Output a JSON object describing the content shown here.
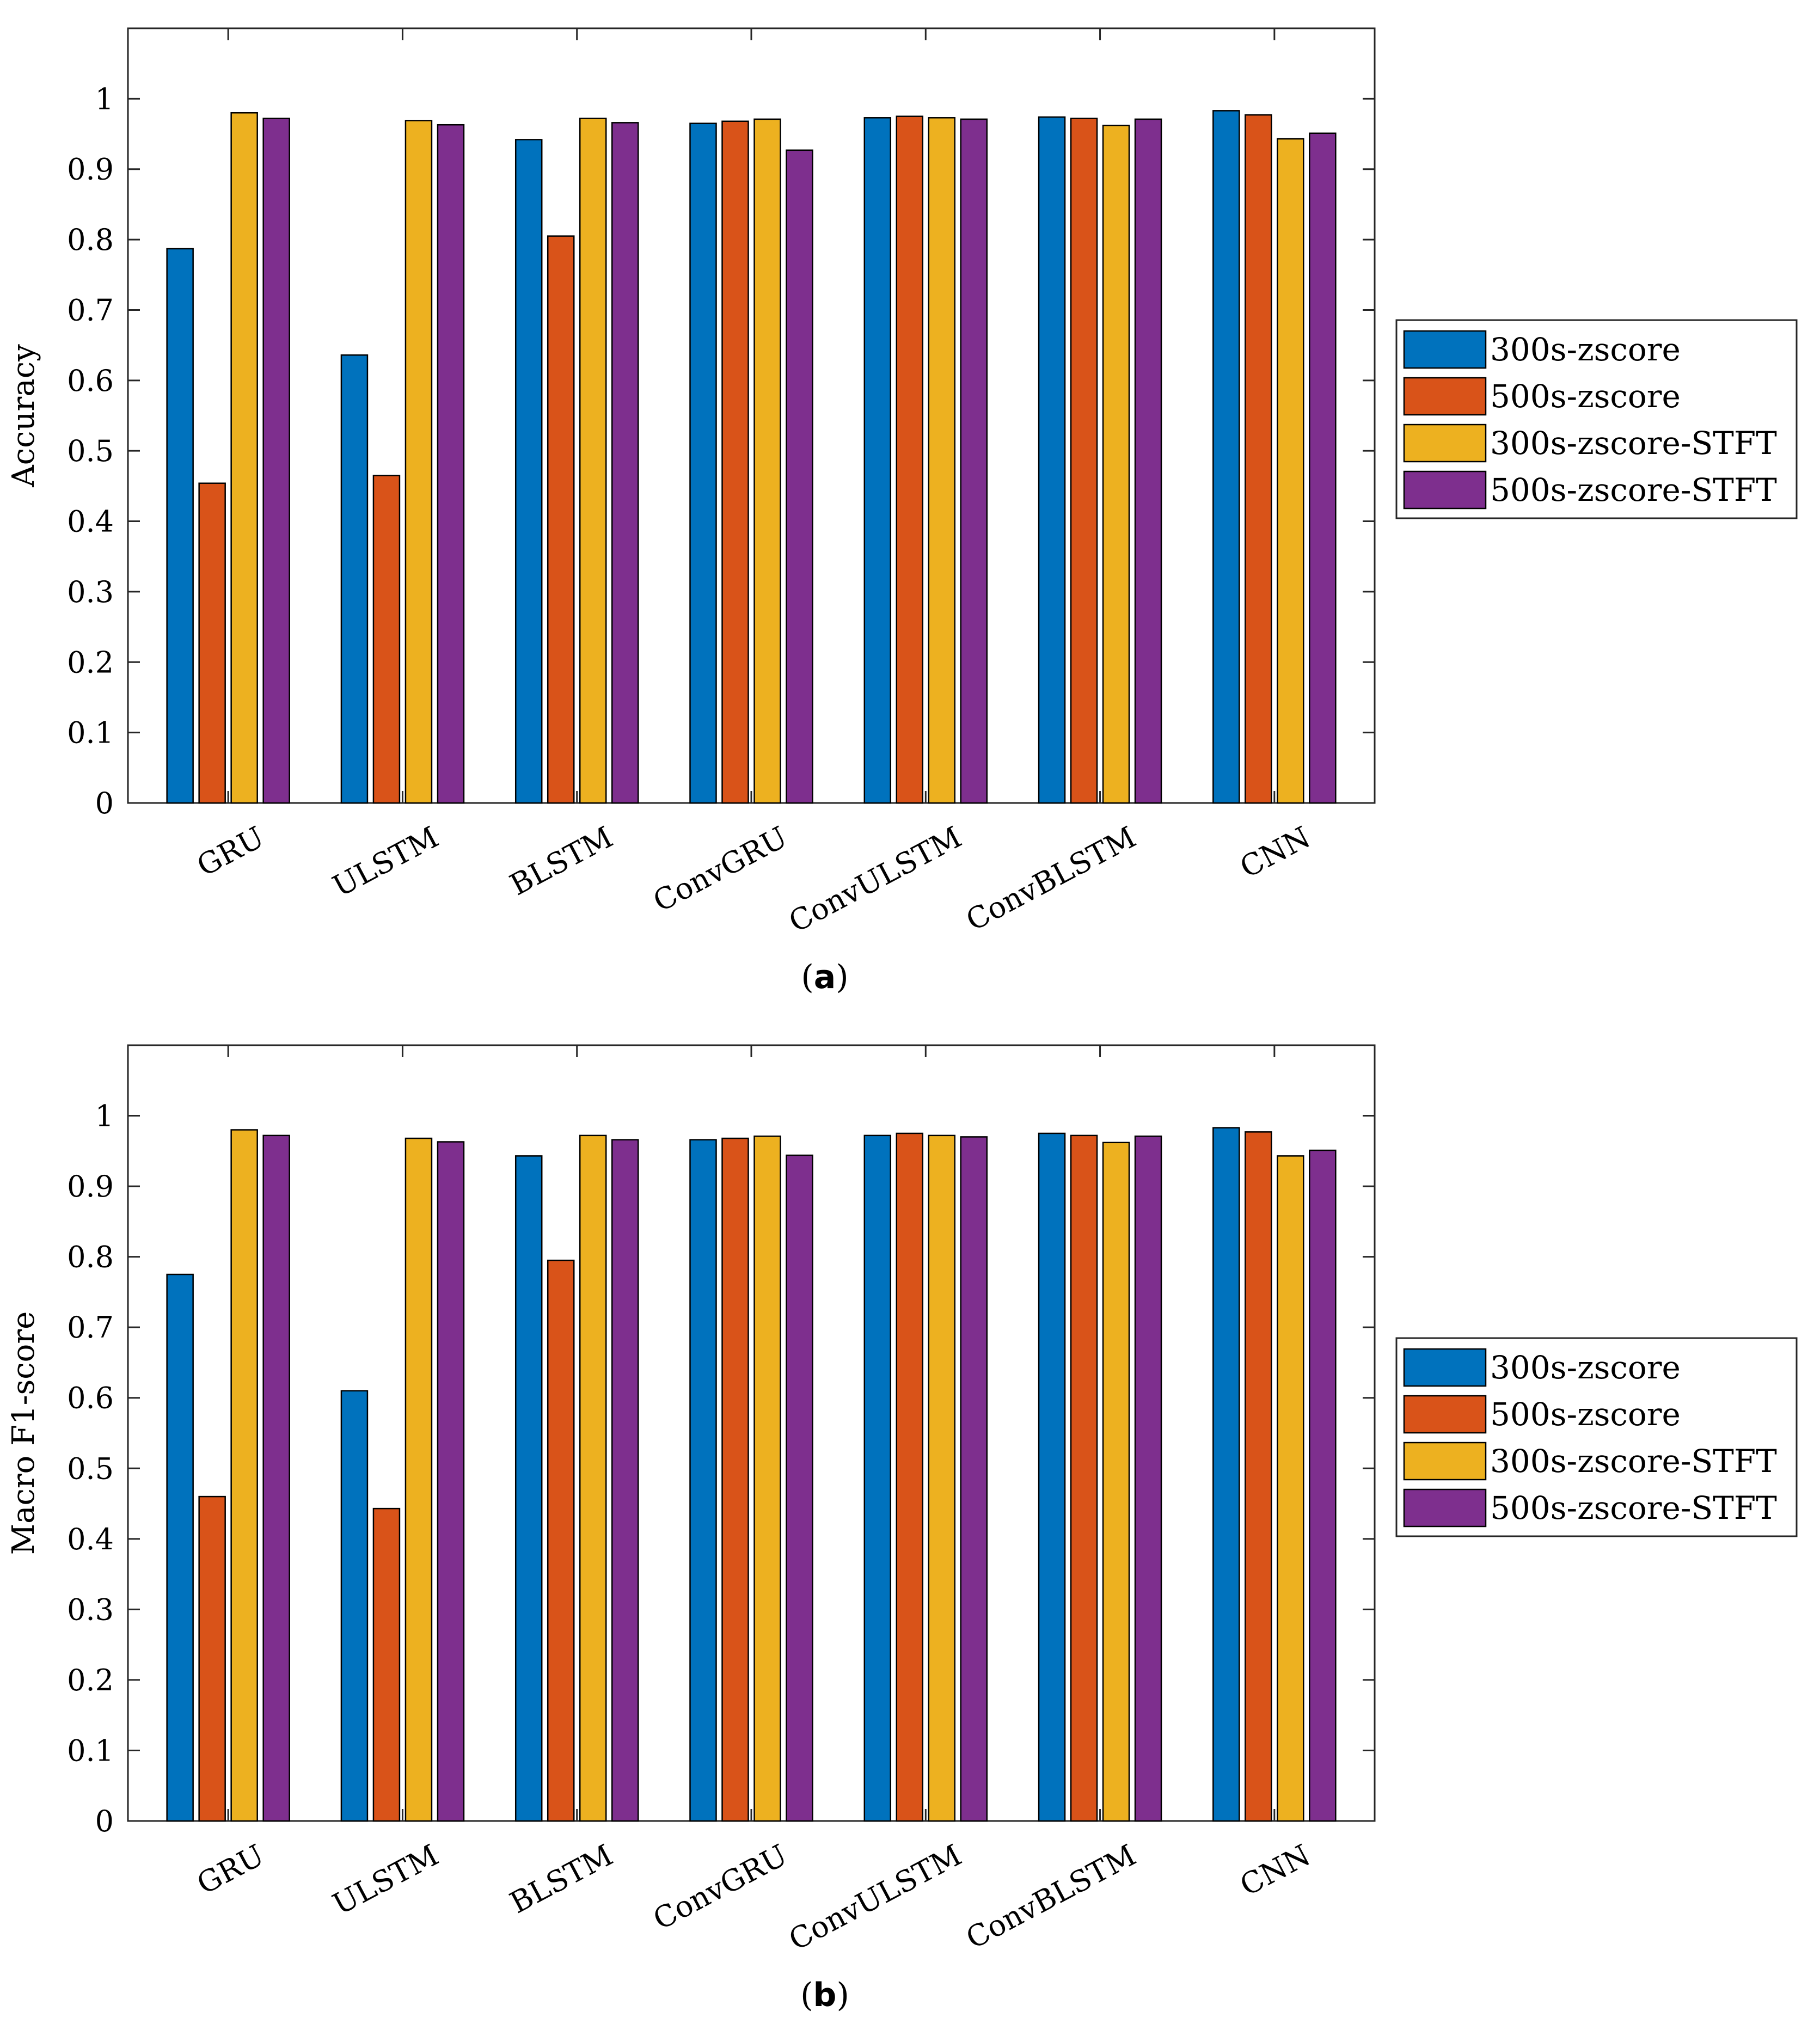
{
  "colors": {
    "s300_zscore": "#0072BD",
    "s500_zscore": "#D95319",
    "s300_stft": "#EDB120",
    "s500_stft": "#7E2F8E"
  },
  "chart_data": [
    {
      "type": "bar",
      "caption_letter": "a",
      "ylabel": "Accuracy",
      "xlabel": "",
      "ylim": [
        0,
        1.1
      ],
      "yticks": [
        "0",
        "0.1",
        "0.2",
        "0.3",
        "0.4",
        "0.5",
        "0.6",
        "0.7",
        "0.8",
        "0.9",
        "1"
      ],
      "categories": [
        "GRU",
        "ULSTM",
        "BLSTM",
        "ConvGRU",
        "ConvULSTM",
        "ConvBLSTM",
        "CNN"
      ],
      "legend": "right",
      "series": [
        {
          "name": "300s-zscore",
          "color": "#0072BD",
          "values": [
            0.787,
            0.636,
            0.942,
            0.965,
            0.973,
            0.974,
            0.983
          ]
        },
        {
          "name": "500s-zscore",
          "color": "#D95319",
          "values": [
            0.454,
            0.465,
            0.805,
            0.968,
            0.975,
            0.972,
            0.977
          ]
        },
        {
          "name": "300s-zscore-STFT",
          "color": "#EDB120",
          "values": [
            0.98,
            0.969,
            0.972,
            0.971,
            0.973,
            0.962,
            0.943
          ]
        },
        {
          "name": "500s-zscore-STFT",
          "color": "#7E2F8E",
          "values": [
            0.972,
            0.963,
            0.966,
            0.927,
            0.971,
            0.971,
            0.951
          ]
        }
      ]
    },
    {
      "type": "bar",
      "caption_letter": "b",
      "ylabel": "Macro F1-score",
      "xlabel": "",
      "ylim": [
        0,
        1.1
      ],
      "yticks": [
        "0",
        "0.1",
        "0.2",
        "0.3",
        "0.4",
        "0.5",
        "0.6",
        "0.7",
        "0.8",
        "0.9",
        "1"
      ],
      "categories": [
        "GRU",
        "ULSTM",
        "BLSTM",
        "ConvGRU",
        "ConvULSTM",
        "ConvBLSTM",
        "CNN"
      ],
      "legend": "right",
      "series": [
        {
          "name": "300s-zscore",
          "color": "#0072BD",
          "values": [
            0.775,
            0.61,
            0.943,
            0.966,
            0.972,
            0.975,
            0.983
          ]
        },
        {
          "name": "500s-zscore",
          "color": "#D95319",
          "values": [
            0.46,
            0.443,
            0.795,
            0.968,
            0.975,
            0.972,
            0.977
          ]
        },
        {
          "name": "300s-zscore-STFT",
          "color": "#EDB120",
          "values": [
            0.98,
            0.968,
            0.972,
            0.971,
            0.972,
            0.962,
            0.943
          ]
        },
        {
          "name": "500s-zscore-STFT",
          "color": "#7E2F8E",
          "values": [
            0.972,
            0.963,
            0.966,
            0.944,
            0.97,
            0.971,
            0.951
          ]
        }
      ]
    }
  ]
}
